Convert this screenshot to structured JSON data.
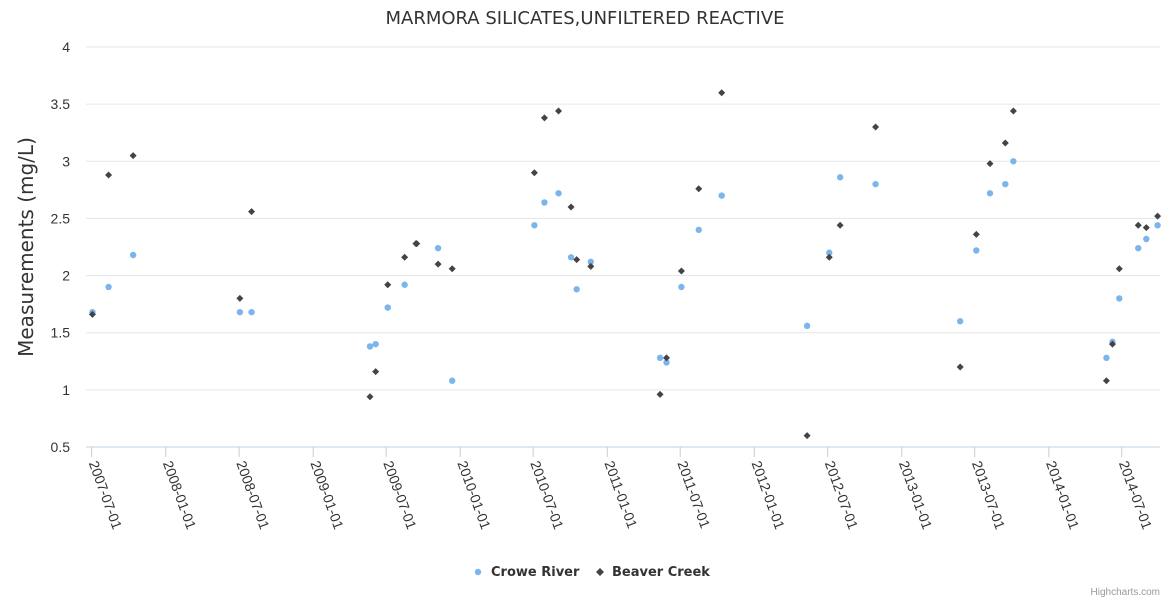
{
  "chart_data": {
    "type": "scatter",
    "title": "MARMORA SILICATES,UNFILTERED REACTIVE",
    "ylabel": "Measurements (mg/L)",
    "ylim": [
      0.5,
      4
    ],
    "yticks": [
      "0.5",
      "1",
      "1.5",
      "2",
      "2.5",
      "3",
      "3.5",
      "4"
    ],
    "xlim": [
      "2007-06-17",
      "2014-10-04"
    ],
    "xticks": [
      "2007-07-01",
      "2008-01-01",
      "2008-07-01",
      "2009-01-01",
      "2009-07-01",
      "2010-01-01",
      "2010-07-01",
      "2011-01-01",
      "2011-07-01",
      "2012-01-01",
      "2012-07-01",
      "2013-01-01",
      "2013-07-01",
      "2014-01-01",
      "2014-07-01"
    ],
    "grid": true,
    "legend_position": "bottom-center",
    "series": [
      {
        "name": "Crowe River",
        "color": "#7cb5ec",
        "marker": "circle",
        "points": [
          {
            "x": "2007-07-03",
            "y": 1.68
          },
          {
            "x": "2007-08-12",
            "y": 1.9
          },
          {
            "x": "2007-10-12",
            "y": 2.18
          },
          {
            "x": "2008-07-03",
            "y": 1.68
          },
          {
            "x": "2008-08-01",
            "y": 1.68
          },
          {
            "x": "2009-05-22",
            "y": 1.38
          },
          {
            "x": "2009-06-05",
            "y": 1.4
          },
          {
            "x": "2009-07-05",
            "y": 1.72
          },
          {
            "x": "2009-08-16",
            "y": 1.92
          },
          {
            "x": "2009-11-07",
            "y": 2.24
          },
          {
            "x": "2009-12-12",
            "y": 1.08
          },
          {
            "x": "2010-07-04",
            "y": 2.44
          },
          {
            "x": "2010-07-29",
            "y": 2.64
          },
          {
            "x": "2010-09-02",
            "y": 2.72
          },
          {
            "x": "2010-10-03",
            "y": 2.16
          },
          {
            "x": "2010-10-17",
            "y": 1.88
          },
          {
            "x": "2010-11-21",
            "y": 2.12
          },
          {
            "x": "2011-05-12",
            "y": 1.28
          },
          {
            "x": "2011-05-28",
            "y": 1.24
          },
          {
            "x": "2011-07-04",
            "y": 1.9
          },
          {
            "x": "2011-08-16",
            "y": 2.4
          },
          {
            "x": "2011-10-12",
            "y": 2.7
          },
          {
            "x": "2012-05-11",
            "y": 1.56
          },
          {
            "x": "2012-07-05",
            "y": 2.2
          },
          {
            "x": "2012-08-01",
            "y": 2.86
          },
          {
            "x": "2012-10-28",
            "y": 2.8
          },
          {
            "x": "2013-05-26",
            "y": 1.6
          },
          {
            "x": "2013-07-05",
            "y": 2.22
          },
          {
            "x": "2013-08-08",
            "y": 2.72
          },
          {
            "x": "2013-09-15",
            "y": 2.8
          },
          {
            "x": "2013-10-05",
            "y": 3.0
          },
          {
            "x": "2014-05-24",
            "y": 1.28
          },
          {
            "x": "2014-06-08",
            "y": 1.42
          },
          {
            "x": "2014-06-25",
            "y": 1.8
          },
          {
            "x": "2014-08-11",
            "y": 2.24
          },
          {
            "x": "2014-08-31",
            "y": 2.32
          },
          {
            "x": "2014-09-28",
            "y": 2.44
          }
        ]
      },
      {
        "name": "Beaver Creek",
        "color": "#434348",
        "marker": "diamond",
        "points": [
          {
            "x": "2007-07-03",
            "y": 1.66
          },
          {
            "x": "2007-08-12",
            "y": 2.88
          },
          {
            "x": "2007-10-12",
            "y": 3.05
          },
          {
            "x": "2008-07-03",
            "y": 1.8
          },
          {
            "x": "2008-08-01",
            "y": 2.56
          },
          {
            "x": "2009-05-22",
            "y": 0.94
          },
          {
            "x": "2009-06-05",
            "y": 1.16
          },
          {
            "x": "2009-07-05",
            "y": 1.92
          },
          {
            "x": "2009-08-16",
            "y": 2.16
          },
          {
            "x": "2009-09-13",
            "y": 2.28
          },
          {
            "x": "2009-09-15",
            "y": 2.28
          },
          {
            "x": "2009-11-07",
            "y": 2.1
          },
          {
            "x": "2009-12-12",
            "y": 2.06
          },
          {
            "x": "2010-07-04",
            "y": 2.9
          },
          {
            "x": "2010-07-29",
            "y": 3.38
          },
          {
            "x": "2010-09-02",
            "y": 3.44
          },
          {
            "x": "2010-10-03",
            "y": 2.6
          },
          {
            "x": "2010-10-17",
            "y": 2.14
          },
          {
            "x": "2010-11-21",
            "y": 2.08
          },
          {
            "x": "2011-05-12",
            "y": 0.96
          },
          {
            "x": "2011-05-28",
            "y": 1.28
          },
          {
            "x": "2011-07-04",
            "y": 2.04
          },
          {
            "x": "2011-08-16",
            "y": 2.76
          },
          {
            "x": "2011-10-12",
            "y": 3.6
          },
          {
            "x": "2012-05-11",
            "y": 0.6
          },
          {
            "x": "2012-07-05",
            "y": 2.16
          },
          {
            "x": "2012-08-01",
            "y": 2.44
          },
          {
            "x": "2012-10-28",
            "y": 3.3
          },
          {
            "x": "2013-05-26",
            "y": 1.2
          },
          {
            "x": "2013-07-05",
            "y": 2.36
          },
          {
            "x": "2013-08-08",
            "y": 2.98
          },
          {
            "x": "2013-09-15",
            "y": 3.16
          },
          {
            "x": "2013-10-05",
            "y": 3.44
          },
          {
            "x": "2014-05-24",
            "y": 1.08
          },
          {
            "x": "2014-06-08",
            "y": 1.4
          },
          {
            "x": "2014-06-25",
            "y": 2.06
          },
          {
            "x": "2014-08-11",
            "y": 2.44
          },
          {
            "x": "2014-08-31",
            "y": 2.42
          },
          {
            "x": "2014-09-28",
            "y": 2.52
          }
        ]
      }
    ]
  },
  "credits": "Highcharts.com"
}
